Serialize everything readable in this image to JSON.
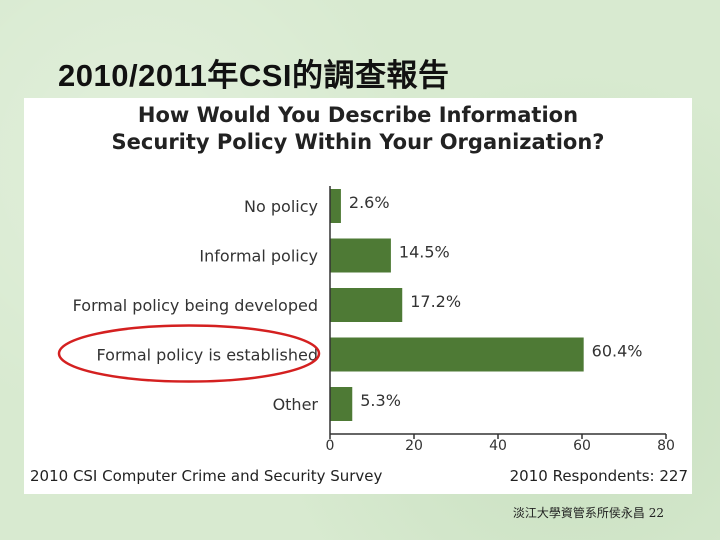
{
  "slide": {
    "title": "2010/2011年CSI的調查報告",
    "footer": "淡江大學資管系所侯永昌 22"
  },
  "chart_data": {
    "type": "bar",
    "orientation": "horizontal",
    "title_lines": [
      "How Would You Describe Information",
      "Security Policy Within Your Organization?"
    ],
    "categories": [
      "No policy",
      "Informal policy",
      "Formal policy being developed",
      "Formal policy is established",
      "Other"
    ],
    "values": [
      2.6,
      14.5,
      17.2,
      60.4,
      5.3
    ],
    "value_labels": [
      "2.6%",
      "14.5%",
      "17.2%",
      "60.4%",
      "5.3%"
    ],
    "xlim": [
      0,
      80
    ],
    "xticks": [
      "0",
      "20",
      "40",
      "60",
      "80"
    ],
    "highlighted_category": "Formal policy is established",
    "bar_color": "#4e7a35",
    "highlight_color": "#d42020",
    "grid": false,
    "source": "2010 CSI Computer Crime and Security Survey",
    "respondents": "2010 Respondents: 227"
  }
}
